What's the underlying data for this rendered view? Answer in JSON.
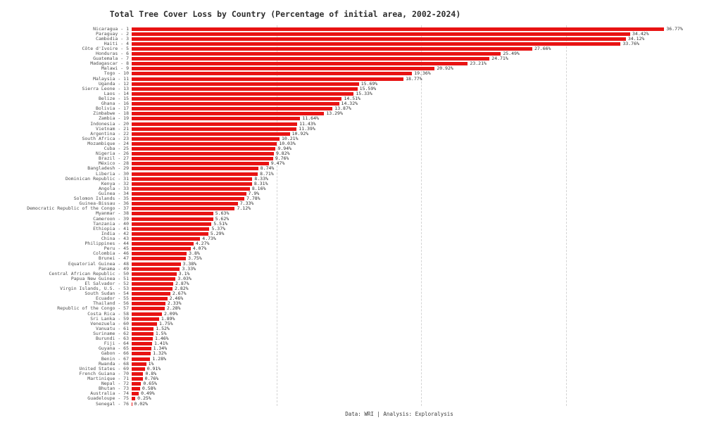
{
  "title": "Total Tree Cover Loss by Country (Percentage of initial area, 2002-2024)",
  "footer": "Data: WRI | Analysis: Exploralysis",
  "colors": {
    "bar": "#e81313",
    "gridline": "#d4d4d4",
    "title_text": "#2d2d2d",
    "tick_label_text": "#4d4d4d",
    "value_label_text": "#303030",
    "background": "#ffffff"
  },
  "chart_data": {
    "type": "bar",
    "orientation": "horizontal",
    "title": "Total Tree Cover Loss by Country (Percentage of initial area, 2002-2024)",
    "xlabel": "",
    "ylabel": "",
    "xlim": [
      0,
      40
    ],
    "grid": "dashed vertical",
    "grid_x_percent": [
      10,
      20,
      30
    ],
    "legend_position": "none",
    "source_note": "Data: WRI | Analysis: Exploralysis",
    "categories": [
      "Nicaragua",
      "Paraguay",
      "Cambodia",
      "Haiti",
      "Côte d'Ivoire",
      "Honduras",
      "Guatemala",
      "Madagascar",
      "Malawi",
      "Togo",
      "Malaysia",
      "Uganda",
      "Sierra Leone",
      "Laos",
      "Belize",
      "Ghana",
      "Bolivia",
      "Zimbabwe",
      "Zambia",
      "Indonesia",
      "Vietnam",
      "Argentina",
      "South Africa",
      "Mozambique",
      "Cuba",
      "Nigeria",
      "Brazil",
      "México",
      "Bangladesh",
      "Liberia",
      "Dominican Republic",
      "Kenya",
      "Angola",
      "Guinea",
      "Solomon Islands",
      "Guinea-Bissau",
      "Democratic Republic of the Congo",
      "Myanmar",
      "Cameroon",
      "Tanzania",
      "Ethiopia",
      "India",
      "China",
      "Philippines",
      "Peru",
      "Colombia",
      "Brunei",
      "Equatorial Guinea",
      "Panama",
      "Central African Republic",
      "Papua New Guinea",
      "El Salvador",
      "Virgin Islands, U.S.",
      "South Sudan",
      "Ecuador",
      "Thailand",
      "Republic of the Congo",
      "Costa Rica",
      "Sri Lanka",
      "Venezuela",
      "Vanuatu",
      "Suriname",
      "Burundi",
      "Fiji",
      "Guyana",
      "Gabon",
      "Benin",
      "Rwanda",
      "United States",
      "French Guiana",
      "Martinique",
      "Nepal",
      "Bhutan",
      "Australia",
      "Guadeloupe",
      "Senegal"
    ],
    "ranks": [
      1,
      2,
      3,
      4,
      5,
      6,
      7,
      8,
      9,
      10,
      11,
      12,
      13,
      14,
      15,
      16,
      17,
      18,
      19,
      20,
      21,
      22,
      23,
      24,
      25,
      26,
      27,
      28,
      29,
      30,
      31,
      32,
      33,
      34,
      35,
      36,
      37,
      38,
      39,
      40,
      41,
      42,
      43,
      44,
      45,
      46,
      47,
      48,
      49,
      50,
      51,
      52,
      53,
      54,
      55,
      56,
      57,
      58,
      59,
      60,
      61,
      62,
      63,
      64,
      65,
      66,
      67,
      68,
      69,
      70,
      71,
      72,
      73,
      74,
      75,
      76
    ],
    "values": [
      36.77,
      34.42,
      34.12,
      33.76,
      27.66,
      25.49,
      24.71,
      23.21,
      20.92,
      19.36,
      18.77,
      15.69,
      15.59,
      15.33,
      14.51,
      14.32,
      13.87,
      13.29,
      11.64,
      11.43,
      11.39,
      10.92,
      10.21,
      10.03,
      9.94,
      9.82,
      9.76,
      9.47,
      8.74,
      8.71,
      8.33,
      8.31,
      8.16,
      7.9,
      7.78,
      7.33,
      7.12,
      5.63,
      5.62,
      5.51,
      5.37,
      5.29,
      4.73,
      4.27,
      4.07,
      3.8,
      3.75,
      3.38,
      3.33,
      3.1,
      3.03,
      2.87,
      2.82,
      2.67,
      2.46,
      2.33,
      2.28,
      2.09,
      1.89,
      1.75,
      1.52,
      1.5,
      1.46,
      1.41,
      1.34,
      1.32,
      1.28,
      1.0,
      0.91,
      0.8,
      0.76,
      0.65,
      0.58,
      0.49,
      0.25,
      0.02
    ],
    "value_labels": [
      "36.77%",
      "34.42%",
      "34.12%",
      "33.76%",
      "27.66%",
      "25.49%",
      "24.71%",
      "23.21%",
      "20.92%",
      "19.36%",
      "18.77%",
      "15.69%",
      "15.59%",
      "15.33%",
      "14.51%",
      "14.32%",
      "13.87%",
      "13.29%",
      "11.64%",
      "11.43%",
      "11.39%",
      "10.92%",
      "10.21%",
      "10.03%",
      "9.94%",
      "9.82%",
      "9.76%",
      "9.47%",
      "8.74%",
      "8.71%",
      "8.33%",
      "8.31%",
      "8.16%",
      "7.9%",
      "7.78%",
      "7.33%",
      "7.12%",
      "5.63%",
      "5.62%",
      "5.51%",
      "5.37%",
      "5.29%",
      "4.73%",
      "4.27%",
      "4.07%",
      "3.8%",
      "3.75%",
      "3.38%",
      "3.33%",
      "3.1%",
      "3.03%",
      "2.87%",
      "2.82%",
      "2.67%",
      "2.46%",
      "2.33%",
      "2.28%",
      "2.09%",
      "1.89%",
      "1.75%",
      "1.52%",
      "1.5%",
      "1.46%",
      "1.41%",
      "1.34%",
      "1.32%",
      "1.28%",
      "1%",
      "0.91%",
      "0.8%",
      "0.76%",
      "0.65%",
      "0.58%",
      "0.49%",
      "0.25%",
      "0.02%"
    ],
    "tick_label_format": "{country} - {rank}"
  }
}
